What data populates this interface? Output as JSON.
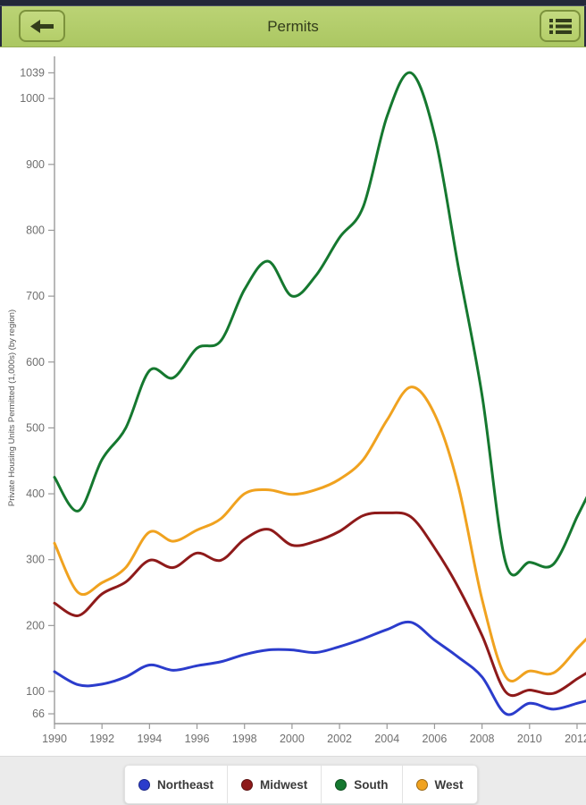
{
  "header": {
    "title": "Permits",
    "back_button": {
      "icon": "back-arrow-icon"
    },
    "menu_button": {
      "icon": "list-menu-icon"
    },
    "bar_color": "#b2cd6b",
    "icon_color": "#333d1b"
  },
  "chart_data": {
    "type": "line",
    "title": "Permits",
    "xlabel": "",
    "ylabel": "Private Housing Units Permitted (1,000s) (by region)",
    "x": [
      1990,
      1991,
      1992,
      1993,
      1994,
      1995,
      1996,
      1997,
      1998,
      1999,
      2000,
      2001,
      2002,
      2003,
      2004,
      2005,
      2006,
      2007,
      2008,
      2009,
      2010,
      2011,
      2012
    ],
    "x_tick_labels": [
      "1990",
      "1992",
      "1994",
      "1996",
      "1998",
      "2000",
      "2002",
      "2004",
      "2006",
      "2008",
      "2010",
      "2012"
    ],
    "y_ticks": [
      66,
      100,
      200,
      300,
      400,
      500,
      600,
      700,
      800,
      900,
      1000,
      1039
    ],
    "ylim": [
      51,
      1064
    ],
    "xlim": [
      1990,
      2012.5
    ],
    "grid": false,
    "legend_position": "bottom",
    "axis_color": "#9a9a9a",
    "tick_text_color": "#6f6f6f",
    "series": [
      {
        "name": "Northeast",
        "color": "#2b3ccc",
        "values": [
          130,
          110,
          111,
          122,
          140,
          132,
          139,
          145,
          156,
          163,
          163,
          159,
          168,
          180,
          194,
          205,
          178,
          152,
          122,
          66,
          82,
          73,
          82
        ]
      },
      {
        "name": "Midwest",
        "color": "#8e1a1a",
        "values": [
          234,
          215,
          248,
          266,
          299,
          288,
          310,
          299,
          331,
          346,
          322,
          328,
          343,
          367,
          371,
          365,
          318,
          258,
          185,
          99,
          102,
          97,
          119
        ]
      },
      {
        "name": "South",
        "color": "#15782f",
        "values": [
          425,
          374,
          452,
          500,
          587,
          576,
          621,
          632,
          710,
          753,
          700,
          731,
          789,
          836,
          973,
          1039,
          945,
          745,
          550,
          295,
          296,
          293,
          365
        ]
      },
      {
        "name": "West",
        "color": "#f0a21f",
        "values": [
          325,
          250,
          265,
          288,
          342,
          328,
          345,
          362,
          400,
          406,
          399,
          406,
          422,
          452,
          512,
          562,
          521,
          412,
          240,
          122,
          131,
          128,
          165
        ]
      }
    ]
  }
}
